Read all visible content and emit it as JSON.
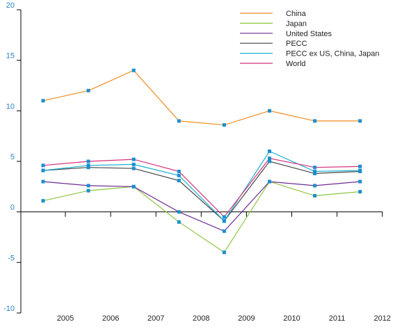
{
  "chart_data": {
    "type": "line",
    "title": "",
    "xlabel": "",
    "ylabel": "",
    "x": [
      "2005",
      "2006",
      "2007",
      "2008",
      "2009",
      "2010",
      "2011",
      "2012"
    ],
    "ylim": [
      -10,
      20
    ],
    "yticks": [
      "20",
      "15",
      "10",
      "5",
      "0",
      "-5",
      "-10"
    ],
    "legend_position": "top-right",
    "grid": false,
    "series": [
      {
        "name": "China",
        "color": "#f28c1e",
        "values": [
          11,
          12,
          14,
          9,
          8.6,
          10,
          9,
          9
        ]
      },
      {
        "name": "Japan",
        "color": "#8cc63f",
        "values": [
          1.1,
          2.1,
          2.5,
          -1,
          -4,
          3,
          1.6,
          2
        ]
      },
      {
        "name": "United States",
        "color": "#6b2c8f",
        "values": [
          3,
          2.6,
          2.5,
          0,
          -1.9,
          3,
          2.6,
          3
        ]
      },
      {
        "name": "PECC",
        "color": "#444444",
        "values": [
          4.1,
          4.4,
          4.3,
          3.1,
          -0.9,
          5,
          3.8,
          4
        ]
      },
      {
        "name": "PECC ex US, China, Japan",
        "color": "#1ab0d0",
        "values": [
          4.1,
          4.6,
          4.7,
          3.6,
          -0.9,
          6,
          4,
          4.1
        ]
      },
      {
        "name": "World",
        "color": "#d62f7a",
        "values": [
          4.6,
          5,
          5.2,
          4,
          -0.5,
          5.3,
          4.4,
          4.5
        ]
      }
    ],
    "marker_color": "#1a8fd0"
  }
}
